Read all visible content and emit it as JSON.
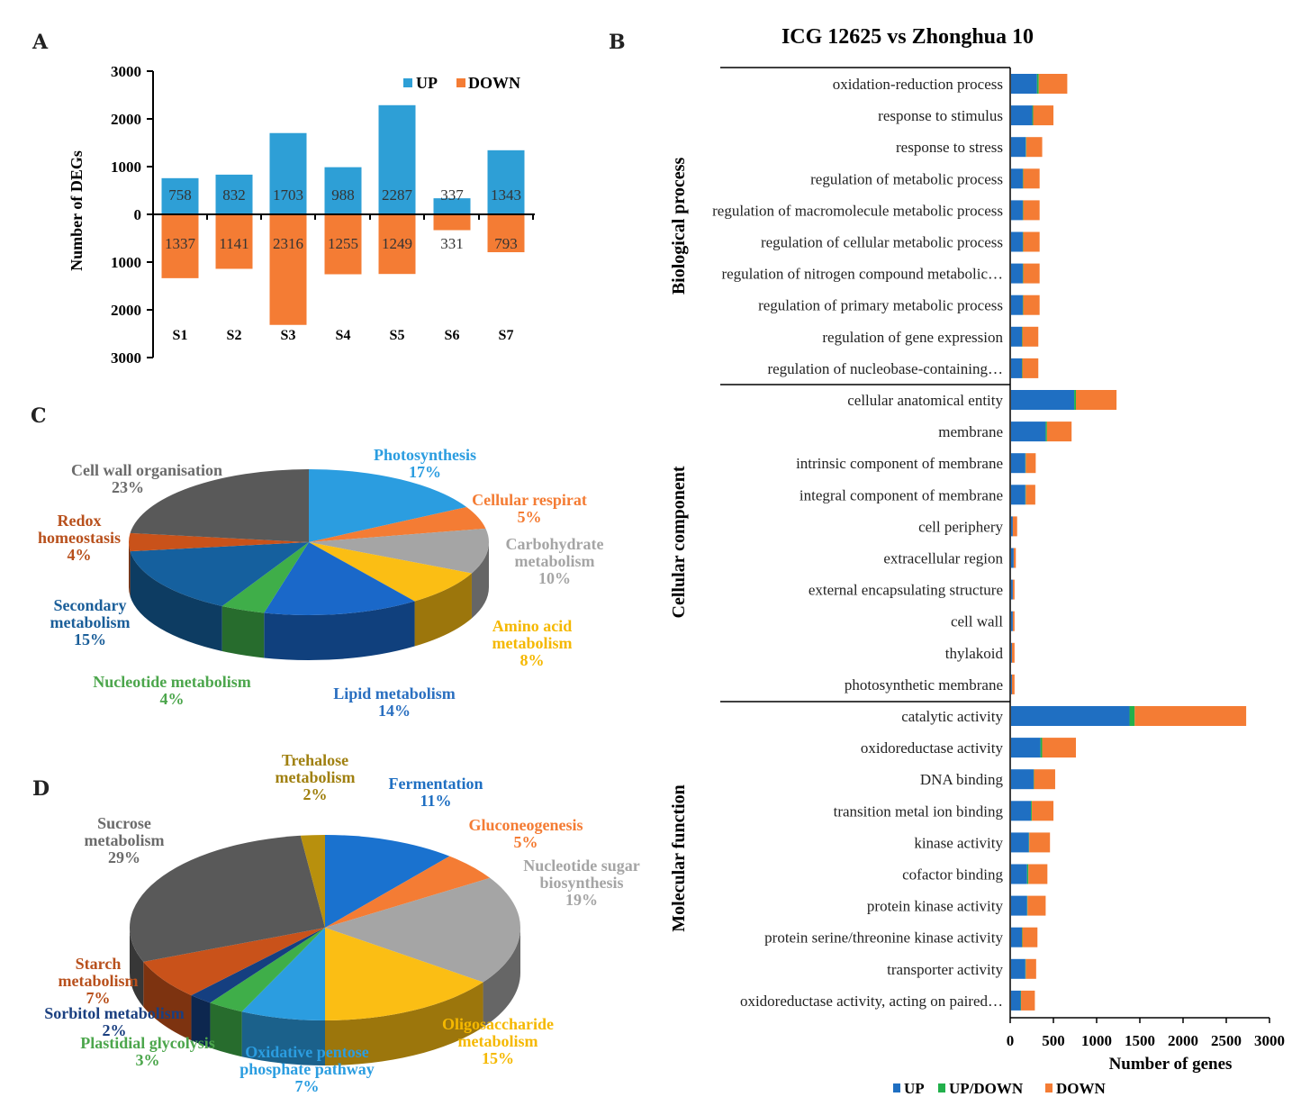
{
  "panel_a": {
    "letter": "A",
    "chart_data": {
      "type": "bar",
      "title": "",
      "ylabel": "Number of DEGs",
      "xlabel": "",
      "categories": [
        "S1",
        "S2",
        "S3",
        "S4",
        "S5",
        "S6",
        "S7"
      ],
      "series": [
        {
          "name": "UP",
          "values": [
            758,
            832,
            1703,
            988,
            2287,
            337,
            1343
          ],
          "color": "#2e9fd6"
        },
        {
          "name": "DOWN",
          "values": [
            1337,
            1141,
            2316,
            1255,
            1249,
            331,
            793
          ],
          "color": "#f47c34"
        }
      ],
      "yticks": [
        "3000",
        "2000",
        "1000",
        "0",
        "1000",
        "2000",
        "3000"
      ],
      "ylim": [
        -3000,
        3000
      ],
      "legend": [
        "UP",
        "DOWN"
      ]
    }
  },
  "panel_b": {
    "letter": "B",
    "chart_data": {
      "type": "bar",
      "orientation": "horizontal",
      "stacked": true,
      "title": "ICG 12625 vs Zhonghua 10",
      "xlabel": "Number of genes",
      "xticks": [
        "0",
        "500",
        "1000",
        "1500",
        "2000",
        "2500",
        "3000"
      ],
      "xlim": [
        0,
        3000
      ],
      "legend": [
        {
          "name": "UP",
          "color": "#1f6fc2"
        },
        {
          "name": "UP/DOWN",
          "color": "#22b04b"
        },
        {
          "name": "DOWN",
          "color": "#f47c34"
        }
      ],
      "groups": [
        {
          "name": "Biological process",
          "categories": [
            {
              "label": "oxidation-reduction process",
              "up": 300,
              "updown": 20,
              "down": 330
            },
            {
              "label": "response to stimulus",
              "up": 245,
              "updown": 10,
              "down": 235
            },
            {
              "label": "response to stress",
              "up": 170,
              "updown": 5,
              "down": 185
            },
            {
              "label": "regulation of metabolic process",
              "up": 135,
              "updown": 5,
              "down": 190
            },
            {
              "label": "regulation of macromolecule metabolic process",
              "up": 135,
              "updown": 5,
              "down": 190
            },
            {
              "label": "regulation of cellular metabolic process",
              "up": 135,
              "updown": 5,
              "down": 190
            },
            {
              "label": "regulation of nitrogen compound metabolic…",
              "up": 135,
              "updown": 5,
              "down": 190
            },
            {
              "label": "regulation of primary metabolic process",
              "up": 135,
              "updown": 5,
              "down": 190
            },
            {
              "label": "regulation of gene expression",
              "up": 125,
              "updown": 5,
              "down": 185
            },
            {
              "label": "regulation of nucleobase-containing…",
              "up": 125,
              "updown": 5,
              "down": 185
            }
          ]
        },
        {
          "name": "Cellular component",
          "categories": [
            {
              "label": "cellular anatomical entity",
              "up": 730,
              "updown": 20,
              "down": 470
            },
            {
              "label": "membrane",
              "up": 400,
              "updown": 15,
              "down": 285
            },
            {
              "label": "intrinsic component of membrane",
              "up": 165,
              "updown": 5,
              "down": 115
            },
            {
              "label": "integral component of membrane",
              "up": 165,
              "updown": 5,
              "down": 110
            },
            {
              "label": "cell periphery",
              "up": 20,
              "updown": 0,
              "down": 50
            },
            {
              "label": "extracellular region",
              "up": 30,
              "updown": 0,
              "down": 25
            },
            {
              "label": "external encapsulating structure",
              "up": 20,
              "updown": 0,
              "down": 20
            },
            {
              "label": "cell wall",
              "up": 20,
              "updown": 0,
              "down": 20
            },
            {
              "label": "thylakoid",
              "up": 10,
              "updown": 0,
              "down": 30
            },
            {
              "label": "photosynthetic membrane",
              "up": 10,
              "updown": 0,
              "down": 30
            }
          ]
        },
        {
          "name": "Molecular function",
          "categories": [
            {
              "label": "catalytic activity",
              "up": 1370,
              "updown": 60,
              "down": 1290
            },
            {
              "label": "oxidoreductase activity",
              "up": 340,
              "updown": 20,
              "down": 390
            },
            {
              "label": "DNA binding",
              "up": 260,
              "updown": 5,
              "down": 245
            },
            {
              "label": "transition metal ion binding",
              "up": 230,
              "updown": 10,
              "down": 250
            },
            {
              "label": "kinase activity",
              "up": 205,
              "updown": 5,
              "down": 240
            },
            {
              "label": "cofactor binding",
              "up": 185,
              "updown": 15,
              "down": 220
            },
            {
              "label": "protein kinase activity",
              "up": 185,
              "updown": 5,
              "down": 210
            },
            {
              "label": "protein serine/threonine kinase activity",
              "up": 125,
              "updown": 5,
              "down": 175
            },
            {
              "label": "transporter activity",
              "up": 165,
              "updown": 5,
              "down": 120
            },
            {
              "label": "oxidoreductase activity, acting on paired…",
              "up": 110,
              "updown": 5,
              "down": 160
            }
          ]
        }
      ]
    }
  },
  "panel_c": {
    "letter": "C",
    "chart_data": {
      "type": "pie",
      "title": "",
      "slices": [
        {
          "label": "Photosynthesis",
          "lines": [
            "Photosynthesis"
          ],
          "pct": "17%",
          "value": 17,
          "color": "#2b9de0",
          "text_color": "#2b9de0"
        },
        {
          "label": "Cellular respirat",
          "lines": [
            "Cellular respirat"
          ],
          "pct": "5%",
          "value": 5,
          "color": "#f47c34",
          "text_color": "#f47c34"
        },
        {
          "label": "Carbohydrate metabolism",
          "lines": [
            "Carbohydrate",
            "metabolism"
          ],
          "pct": "10%",
          "value": 10,
          "color": "#a5a5a5",
          "text_color": "#a5a5a5"
        },
        {
          "label": "Amino acid metabolism",
          "lines": [
            "Amino acid",
            "metabolism"
          ],
          "pct": "8%",
          "value": 8,
          "color": "#fbbe14",
          "text_color": "#f5b800"
        },
        {
          "label": "Lipid metabolism",
          "lines": [
            "Lipid metabolism"
          ],
          "pct": "14%",
          "value": 14,
          "color": "#1a68c9",
          "text_color": "#2a6fc0"
        },
        {
          "label": "Nucleotide metabolism",
          "lines": [
            "Nucleotide metabolism"
          ],
          "pct": "4%",
          "value": 4,
          "color": "#3fae49",
          "text_color": "#4ca64c"
        },
        {
          "label": "Secondary metabolism",
          "lines": [
            "Secondary",
            "metabolism"
          ],
          "pct": "15%",
          "value": 15,
          "color": "#15609e",
          "text_color": "#1a5e99"
        },
        {
          "label": "Redox homeostasis",
          "lines": [
            "Redox",
            "homeostasis"
          ],
          "pct": "4%",
          "value": 4,
          "color": "#c9521a",
          "text_color": "#b8501c"
        },
        {
          "label": "Cell wall organisation",
          "lines": [
            "Cell wall organisation"
          ],
          "pct": "23%",
          "value": 23,
          "color": "#595959",
          "text_color": "#6b6b6b"
        }
      ]
    }
  },
  "panel_d": {
    "letter": "D",
    "chart_data": {
      "type": "pie",
      "title": "",
      "slices": [
        {
          "label": "Fermentation",
          "lines": [
            "Fermentation"
          ],
          "pct": "11%",
          "value": 11,
          "color": "#1a72cf",
          "text_color": "#1f6fc2"
        },
        {
          "label": "Gluconeogenesis",
          "lines": [
            "Gluconeogenesis"
          ],
          "pct": "5%",
          "value": 5,
          "color": "#f47c34",
          "text_color": "#f47c34"
        },
        {
          "label": "Nucleotide sugar biosynthesis",
          "lines": [
            "Nucleotide sugar",
            "biosynthesis"
          ],
          "pct": "19%",
          "value": 19,
          "color": "#a5a5a5",
          "text_color": "#a5a5a5"
        },
        {
          "label": "Oligosaccharide metabolism",
          "lines": [
            "Oligosaccharide",
            "metabolism"
          ],
          "pct": "15%",
          "value": 15,
          "color": "#fbbe14",
          "text_color": "#f5b800"
        },
        {
          "label": "Oxidative pentose phosphate pathway",
          "lines": [
            "Oxidative pentose",
            "phosphate  pathway"
          ],
          "pct": "7%",
          "value": 7,
          "color": "#2b9de0",
          "text_color": "#2b9de0"
        },
        {
          "label": "Plastidial glycolysis",
          "lines": [
            "Plastidial glycolysis"
          ],
          "pct": "3%",
          "value": 3,
          "color": "#3fae49",
          "text_color": "#4ca64c"
        },
        {
          "label": "Sorbitol metabolism",
          "lines": [
            "Sorbitol metabolism"
          ],
          "pct": "2%",
          "value": 2,
          "color": "#153f80",
          "text_color": "#1a3f80"
        },
        {
          "label": "Starch metabolism",
          "lines": [
            "Starch",
            "metabolism"
          ],
          "pct": "7%",
          "value": 7,
          "color": "#c9521a",
          "text_color": "#b8501c"
        },
        {
          "label": "Sucrose metabolism",
          "lines": [
            "Sucrose",
            "metabolism"
          ],
          "pct": "29%",
          "value": 29,
          "color": "#595959",
          "text_color": "#6b6b6b"
        },
        {
          "label": "Trehalose metabolism",
          "lines": [
            "Trehalose",
            "metabolism"
          ],
          "pct": "2%",
          "value": 2,
          "color": "#b8900d",
          "text_color": "#a08010"
        }
      ]
    }
  }
}
